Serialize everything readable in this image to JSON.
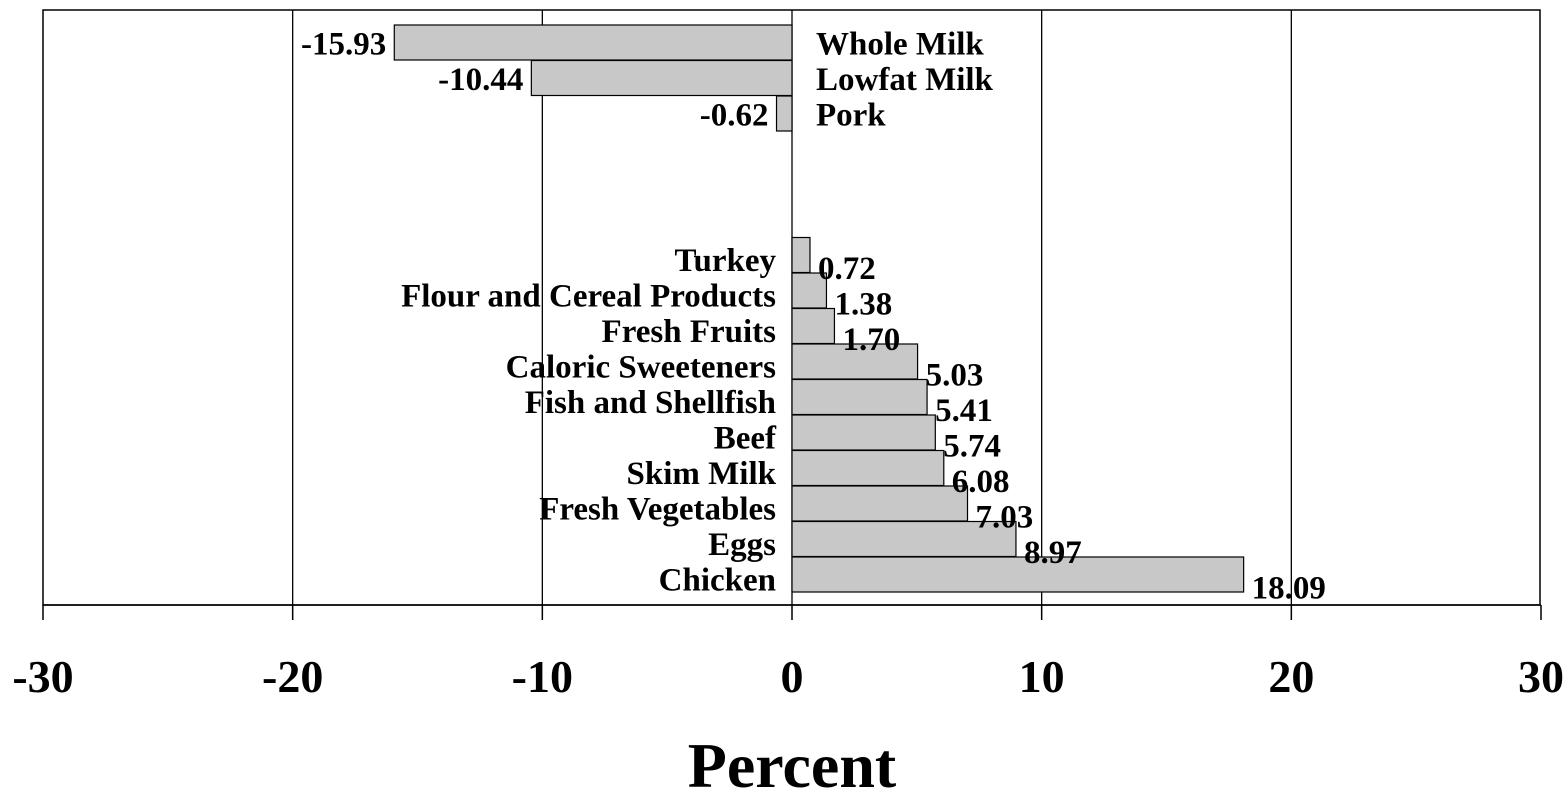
{
  "chart_data": {
    "type": "bar",
    "orientation": "horizontal",
    "xlabel": "Percent",
    "xlim": [
      -30,
      30
    ],
    "xticks": [
      "-30",
      "-20",
      "-10",
      "0",
      "10",
      "20",
      "30"
    ],
    "grid": true,
    "bar_color": "#c8c8c8",
    "decreases": [
      {
        "category": "Whole Milk",
        "value": -15.93,
        "label": "-15.93"
      },
      {
        "category": "Lowfat Milk",
        "value": -10.44,
        "label": "-10.44"
      },
      {
        "category": "Pork",
        "value": -0.62,
        "label": "-0.62"
      }
    ],
    "increases": [
      {
        "category": "Turkey",
        "value": 0.72,
        "label": "0.72"
      },
      {
        "category": "Flour and Cereal Products",
        "value": 1.38,
        "label": "1.38"
      },
      {
        "category": "Fresh Fruits",
        "value": 1.7,
        "label": "1.70"
      },
      {
        "category": "Caloric Sweeteners",
        "value": 5.03,
        "label": "5.03"
      },
      {
        "category": "Fish and Shellfish",
        "value": 5.41,
        "label": "5.41"
      },
      {
        "category": "Beef",
        "value": 5.74,
        "label": "5.74"
      },
      {
        "category": "Skim Milk",
        "value": 6.08,
        "label": "6.08"
      },
      {
        "category": "Fresh Vegetables",
        "value": 7.03,
        "label": "7.03"
      },
      {
        "category": "Eggs",
        "value": 8.97,
        "label": "8.97"
      },
      {
        "category": "Chicken",
        "value": 18.09,
        "label": "18.09"
      }
    ]
  }
}
